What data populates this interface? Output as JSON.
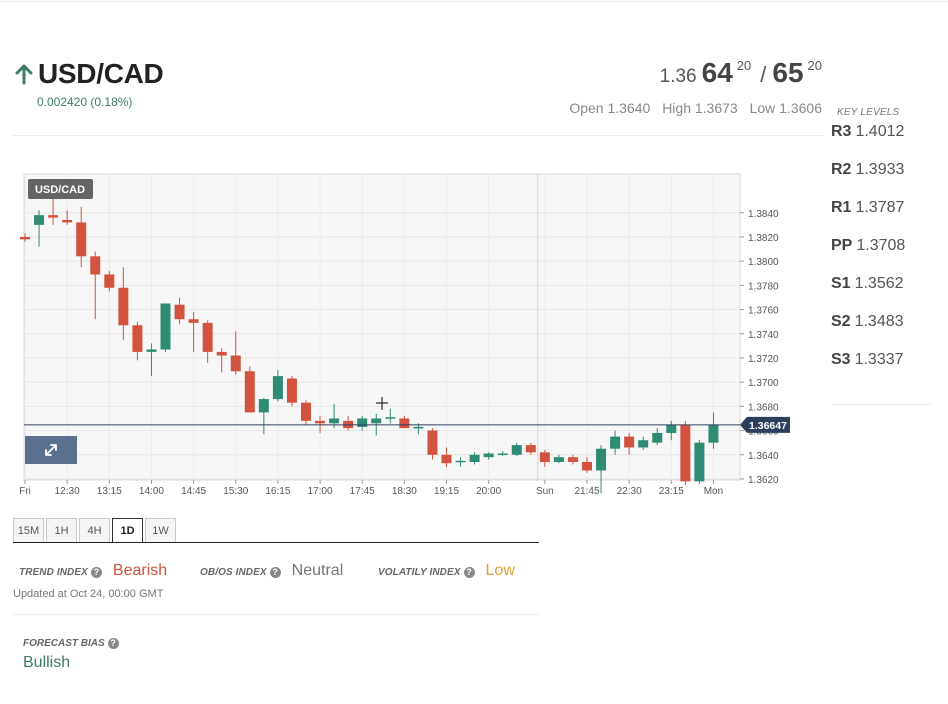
{
  "header": {
    "symbol": "USD/CAD",
    "change": "0.002420 (0.18%)",
    "direction": "up",
    "quote": {
      "pre": "1.36",
      "big1": "64",
      "sup1": "20",
      "sep": "/",
      "big2": "65",
      "sup2": "20"
    },
    "open": "Open 1.3640",
    "high": "High 1.3673",
    "low": "Low 1.3606"
  },
  "key_levels": {
    "title": "KEY LEVELS",
    "items": [
      {
        "label": "R3",
        "value": "1.4012"
      },
      {
        "label": "R2",
        "value": "1.3933"
      },
      {
        "label": "R1",
        "value": "1.3787"
      },
      {
        "label": "PP",
        "value": "1.3708"
      },
      {
        "label": "S1",
        "value": "1.3562"
      },
      {
        "label": "S2",
        "value": "1.3483"
      },
      {
        "label": "S3",
        "value": "1.3337"
      }
    ]
  },
  "timeframes": {
    "items": [
      "15M",
      "1H",
      "4H",
      "1D",
      "1W"
    ],
    "active": "1D"
  },
  "indexes": {
    "trend": {
      "label": "TREND INDEX",
      "value": "Bearish",
      "color": "#c8553d"
    },
    "obos": {
      "label": "OB/OS INDEX",
      "value": "Neutral",
      "color": "#777777"
    },
    "volatility": {
      "label": "VOLATILY INDEX",
      "value": "Low",
      "color": "#e0a230"
    },
    "updated": "Updated at Oct 24, 00:00 GMT"
  },
  "forecast": {
    "label": "FORECAST BIAS",
    "value": "Bullish"
  },
  "colors": {
    "up": "#2e8b74",
    "down": "#d2533f",
    "price_tag": "#2d3f5c",
    "accent_green": "#3c7a69"
  },
  "icons": {
    "direction": "arrow-up-icon",
    "expand": "expand-icon",
    "help": "question-circle-icon"
  },
  "chart_data": {
    "type": "candlestick",
    "title": "USD/CAD",
    "ylim": [
      1.3606,
      1.385
    ],
    "yticks": [
      "1.3840",
      "1.3820",
      "1.3800",
      "1.3780",
      "1.3760",
      "1.3740",
      "1.3720",
      "1.3700",
      "1.3680",
      "1.3660",
      "1.3640",
      "1.3620"
    ],
    "xticks": [
      {
        "label": "Fri",
        "i": 0
      },
      {
        "label": "12:30",
        "i": 3
      },
      {
        "label": "13:15",
        "i": 6
      },
      {
        "label": "14:00",
        "i": 9
      },
      {
        "label": "14:45",
        "i": 12
      },
      {
        "label": "15:30",
        "i": 15
      },
      {
        "label": "16:15",
        "i": 18
      },
      {
        "label": "17:00",
        "i": 21
      },
      {
        "label": "17:45",
        "i": 24
      },
      {
        "label": "18:30",
        "i": 27
      },
      {
        "label": "19:15",
        "i": 30
      },
      {
        "label": "20:00",
        "i": 33
      },
      {
        "label": "Sun",
        "i": 37
      },
      {
        "label": "21:45",
        "i": 40
      },
      {
        "label": "22:30",
        "i": 43
      },
      {
        "label": "23:15",
        "i": 46
      },
      {
        "label": "Mon",
        "i": 49
      }
    ],
    "current_price": "1.36647",
    "current_value": 1.36647,
    "weekend_gap_after_index": 36,
    "candles": [
      {
        "o": 1.382,
        "h": 1.3823,
        "l": 1.3816,
        "c": 1.3818
      },
      {
        "o": 1.383,
        "h": 1.3842,
        "l": 1.3812,
        "c": 1.3838
      },
      {
        "o": 1.3838,
        "h": 1.3852,
        "l": 1.383,
        "c": 1.3836
      },
      {
        "o": 1.3834,
        "h": 1.3842,
        "l": 1.383,
        "c": 1.3832
      },
      {
        "o": 1.3832,
        "h": 1.3845,
        "l": 1.3795,
        "c": 1.3804
      },
      {
        "o": 1.3804,
        "h": 1.3808,
        "l": 1.3752,
        "c": 1.3789
      },
      {
        "o": 1.3789,
        "h": 1.3792,
        "l": 1.3775,
        "c": 1.3778
      },
      {
        "o": 1.3778,
        "h": 1.3795,
        "l": 1.3735,
        "c": 1.3747
      },
      {
        "o": 1.3747,
        "h": 1.375,
        "l": 1.3718,
        "c": 1.3725
      },
      {
        "o": 1.3725,
        "h": 1.3732,
        "l": 1.3705,
        "c": 1.3727
      },
      {
        "o": 1.3727,
        "h": 1.3765,
        "l": 1.3725,
        "c": 1.3765
      },
      {
        "o": 1.3764,
        "h": 1.377,
        "l": 1.3748,
        "c": 1.3752
      },
      {
        "o": 1.3752,
        "h": 1.3758,
        "l": 1.3725,
        "c": 1.3749
      },
      {
        "o": 1.3749,
        "h": 1.3751,
        "l": 1.3716,
        "c": 1.3725
      },
      {
        "o": 1.3725,
        "h": 1.3728,
        "l": 1.3708,
        "c": 1.3722
      },
      {
        "o": 1.3722,
        "h": 1.3742,
        "l": 1.3706,
        "c": 1.3709
      },
      {
        "o": 1.3709,
        "h": 1.3713,
        "l": 1.3675,
        "c": 1.3675
      },
      {
        "o": 1.3675,
        "h": 1.3687,
        "l": 1.3657,
        "c": 1.3686
      },
      {
        "o": 1.3686,
        "h": 1.371,
        "l": 1.3684,
        "c": 1.3705
      },
      {
        "o": 1.3703,
        "h": 1.3705,
        "l": 1.368,
        "c": 1.3683
      },
      {
        "o": 1.3683,
        "h": 1.3685,
        "l": 1.3665,
        "c": 1.3668
      },
      {
        "o": 1.3668,
        "h": 1.3672,
        "l": 1.3658,
        "c": 1.3666
      },
      {
        "o": 1.3666,
        "h": 1.3682,
        "l": 1.3662,
        "c": 1.367
      },
      {
        "o": 1.3668,
        "h": 1.3672,
        "l": 1.366,
        "c": 1.3662
      },
      {
        "o": 1.3663,
        "h": 1.3672,
        "l": 1.366,
        "c": 1.367
      },
      {
        "o": 1.3666,
        "h": 1.3674,
        "l": 1.3656,
        "c": 1.367
      },
      {
        "o": 1.367,
        "h": 1.3678,
        "l": 1.3666,
        "c": 1.3671
      },
      {
        "o": 1.367,
        "h": 1.3672,
        "l": 1.3662,
        "c": 1.3662
      },
      {
        "o": 1.3662,
        "h": 1.3666,
        "l": 1.3657,
        "c": 1.3663
      },
      {
        "o": 1.366,
        "h": 1.3662,
        "l": 1.3636,
        "c": 1.364
      },
      {
        "o": 1.364,
        "h": 1.3646,
        "l": 1.363,
        "c": 1.3633
      },
      {
        "o": 1.3634,
        "h": 1.3638,
        "l": 1.363,
        "c": 1.3635
      },
      {
        "o": 1.3634,
        "h": 1.3642,
        "l": 1.3632,
        "c": 1.364
      },
      {
        "o": 1.3638,
        "h": 1.3642,
        "l": 1.3636,
        "c": 1.3641
      },
      {
        "o": 1.3641,
        "h": 1.3643,
        "l": 1.3639,
        "c": 1.3641
      },
      {
        "o": 1.364,
        "h": 1.365,
        "l": 1.3639,
        "c": 1.3648
      },
      {
        "o": 1.3648,
        "h": 1.365,
        "l": 1.364,
        "c": 1.3642
      },
      {
        "o": 1.3642,
        "h": 1.3644,
        "l": 1.363,
        "c": 1.3634
      },
      {
        "o": 1.3634,
        "h": 1.364,
        "l": 1.3633,
        "c": 1.3638
      },
      {
        "o": 1.3638,
        "h": 1.364,
        "l": 1.3632,
        "c": 1.3634
      },
      {
        "o": 1.3634,
        "h": 1.3638,
        "l": 1.3625,
        "c": 1.3627
      },
      {
        "o": 1.3627,
        "h": 1.3648,
        "l": 1.3608,
        "c": 1.3645
      },
      {
        "o": 1.3645,
        "h": 1.366,
        "l": 1.364,
        "c": 1.3655
      },
      {
        "o": 1.3655,
        "h": 1.3658,
        "l": 1.364,
        "c": 1.3646
      },
      {
        "o": 1.3646,
        "h": 1.3655,
        "l": 1.3644,
        "c": 1.3652
      },
      {
        "o": 1.365,
        "h": 1.3662,
        "l": 1.3648,
        "c": 1.3658
      },
      {
        "o": 1.3658,
        "h": 1.3668,
        "l": 1.3652,
        "c": 1.3665
      },
      {
        "o": 1.3665,
        "h": 1.3668,
        "l": 1.3615,
        "c": 1.3618
      },
      {
        "o": 1.3618,
        "h": 1.3652,
        "l": 1.3616,
        "c": 1.365
      },
      {
        "o": 1.365,
        "h": 1.3675,
        "l": 1.3645,
        "c": 1.3665
      }
    ]
  }
}
